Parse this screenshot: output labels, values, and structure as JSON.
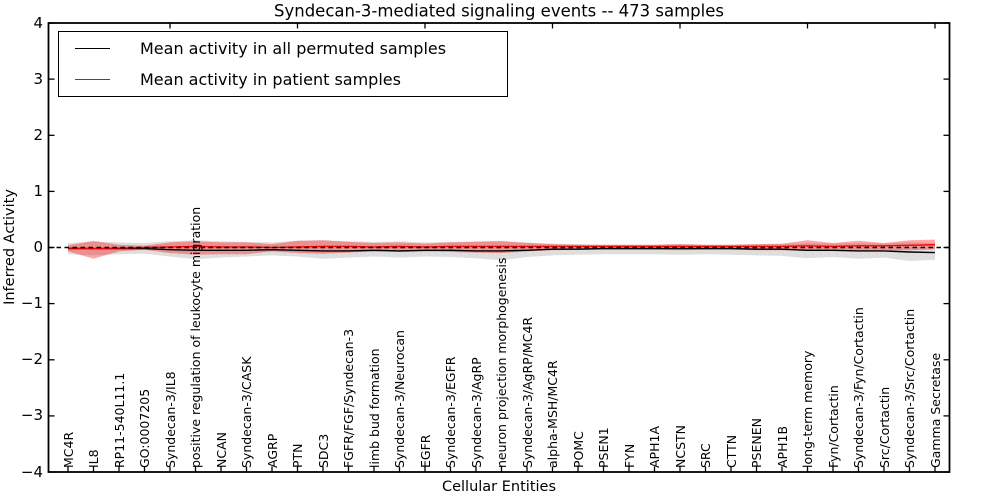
{
  "title": "Syndecan-3-mediated signaling events -- 473 samples",
  "legend": {
    "items": [
      {
        "label": "Mean activity in all permuted samples",
        "color": "#000000"
      },
      {
        "label": "Mean activity in patient samples",
        "color": "#ff0000"
      }
    ]
  },
  "axes": {
    "y_tick_labels": [
      "4",
      "3",
      "2",
      "1",
      "0",
      "−1",
      "−2",
      "−3",
      "−4"
    ],
    "y_tick_values": [
      4,
      3,
      2,
      1,
      0,
      -1,
      -2,
      -3,
      -4
    ]
  },
  "chart_data": {
    "type": "line",
    "title": "Syndecan-3-mediated signaling events -- 473 samples",
    "xlabel": "Cellular Entities",
    "ylabel": "Inferred Activity",
    "ylim": [
      -4,
      4
    ],
    "grid": false,
    "legend_position": "upper left",
    "x_tick_rotation": 90,
    "zero_line": {
      "y": 0,
      "style": "dashed",
      "color": "#000000"
    },
    "categories": [
      "MC4R",
      "IL8",
      "RP11-540L11.1",
      "GO:0007205",
      "Syndecan-3/IL8",
      "positive regulation of leukocyte migration",
      "NCAN",
      "Syndecan-3/CASK",
      "AGRP",
      "PTN",
      "SDC3",
      "FGFR/FGF/Syndecan-3",
      "limb bud formation",
      "Syndecan-3/Neurocan",
      "EGFR",
      "Syndecan-3/EGFR",
      "Syndecan-3/AgRP",
      "neuron projection morphogenesis",
      "Syndecan-3/AgRP/MC4R",
      "alpha-MSH/MC4R",
      "POMC",
      "PSEN1",
      "FYN",
      "APH1A",
      "NCSTN",
      "SRC",
      "CTTN",
      "PSENEN",
      "APH1B",
      "long-term memory",
      "Fyn/Cortactin",
      "Syndecan-3/Fyn/Cortactin",
      "Src/Cortactin",
      "Syndecan-3/Src/Cortactin",
      "Gamma Secretase"
    ],
    "series": [
      {
        "name": "Mean activity in all permuted samples",
        "color": "#000000",
        "band_color": "rgba(0,0,0,0.13)",
        "values": [
          -0.02,
          -0.02,
          -0.02,
          -0.02,
          -0.04,
          -0.05,
          -0.05,
          -0.05,
          -0.04,
          -0.05,
          -0.06,
          -0.06,
          -0.05,
          -0.06,
          -0.05,
          -0.05,
          -0.06,
          -0.06,
          -0.05,
          -0.03,
          -0.03,
          -0.02,
          -0.02,
          -0.02,
          -0.02,
          -0.02,
          -0.02,
          -0.03,
          -0.03,
          -0.05,
          -0.05,
          -0.06,
          -0.06,
          -0.08,
          -0.09
        ],
        "band_upper": [
          0.08,
          0.1,
          0.09,
          0.08,
          0.11,
          0.13,
          0.11,
          0.1,
          0.09,
          0.12,
          0.13,
          0.11,
          0.1,
          0.11,
          0.09,
          0.1,
          0.11,
          0.12,
          0.09,
          0.07,
          0.06,
          0.05,
          0.05,
          0.05,
          0.06,
          0.05,
          0.05,
          0.06,
          0.06,
          0.08,
          0.07,
          0.08,
          0.07,
          0.09,
          0.08
        ],
        "band_lower": [
          -0.12,
          -0.14,
          -0.12,
          -0.11,
          -0.16,
          -0.21,
          -0.18,
          -0.16,
          -0.14,
          -0.16,
          -0.2,
          -0.18,
          -0.16,
          -0.18,
          -0.16,
          -0.17,
          -0.19,
          -0.23,
          -0.17,
          -0.14,
          -0.13,
          -0.12,
          -0.12,
          -0.12,
          -0.13,
          -0.12,
          -0.13,
          -0.14,
          -0.15,
          -0.19,
          -0.17,
          -0.2,
          -0.18,
          -0.24,
          -0.22
        ]
      },
      {
        "name": "Mean activity in patient samples",
        "color": "#ff0000",
        "band_color": "rgba(255,0,0,0.35)",
        "values": [
          -0.01,
          -0.02,
          -0.01,
          0.0,
          0.01,
          0.02,
          0.01,
          0.01,
          0.0,
          0.01,
          0.02,
          0.02,
          0.01,
          0.02,
          0.01,
          0.02,
          0.02,
          0.02,
          0.02,
          0.02,
          0.02,
          0.02,
          0.02,
          0.02,
          0.02,
          0.02,
          0.02,
          0.02,
          0.02,
          0.03,
          0.02,
          0.03,
          0.03,
          0.04,
          0.05
        ],
        "band_upper": [
          0.04,
          0.12,
          0.05,
          0.03,
          0.09,
          0.11,
          0.09,
          0.09,
          0.06,
          0.12,
          0.13,
          0.1,
          0.08,
          0.09,
          0.07,
          0.09,
          0.1,
          0.11,
          0.08,
          0.06,
          0.05,
          0.05,
          0.05,
          0.05,
          0.06,
          0.05,
          0.05,
          0.06,
          0.07,
          0.13,
          0.08,
          0.12,
          0.08,
          0.13,
          0.14
        ],
        "band_lower": [
          -0.07,
          -0.2,
          -0.07,
          -0.04,
          -0.1,
          -0.13,
          -0.12,
          -0.12,
          -0.07,
          -0.1,
          -0.11,
          -0.09,
          -0.07,
          -0.08,
          -0.07,
          -0.08,
          -0.09,
          -0.1,
          -0.07,
          -0.05,
          -0.04,
          -0.04,
          -0.04,
          -0.04,
          -0.05,
          -0.04,
          -0.04,
          -0.05,
          -0.05,
          -0.06,
          -0.05,
          -0.06,
          -0.05,
          -0.05,
          -0.03
        ]
      }
    ]
  }
}
